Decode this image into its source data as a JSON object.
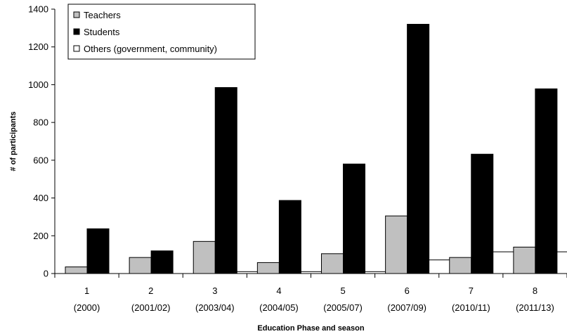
{
  "chart_data": {
    "type": "bar",
    "xlabel": "Education Phase and season",
    "ylabel": "# of participants",
    "ylim": [
      0,
      1400
    ],
    "yticks": [
      0,
      200,
      400,
      600,
      800,
      1000,
      1200,
      1400
    ],
    "categories": [
      {
        "phase": "1",
        "season": "(2000)"
      },
      {
        "phase": "2",
        "season": "(2001/02)"
      },
      {
        "phase": "3",
        "season": "(2003/04)"
      },
      {
        "phase": "4",
        "season": "(2004/05)"
      },
      {
        "phase": "5",
        "season": "(2005/07)"
      },
      {
        "phase": "6",
        "season": "(2007/09)"
      },
      {
        "phase": "7",
        "season": "(2010/11)"
      },
      {
        "phase": "8",
        "season": "(2011/13)"
      }
    ],
    "series": [
      {
        "name": "Teachers",
        "color": "#c0c0c0",
        "values": [
          35,
          85,
          170,
          58,
          105,
          305,
          85,
          140
        ]
      },
      {
        "name": "Students",
        "color": "#000000",
        "values": [
          237,
          120,
          985,
          387,
          580,
          1320,
          632,
          978
        ]
      },
      {
        "name": "Others (government, community)",
        "color": "#ffffff",
        "values": [
          0,
          0,
          10,
          10,
          10,
          72,
          115,
          115
        ]
      }
    ],
    "legend": "top-left",
    "grid": false
  }
}
